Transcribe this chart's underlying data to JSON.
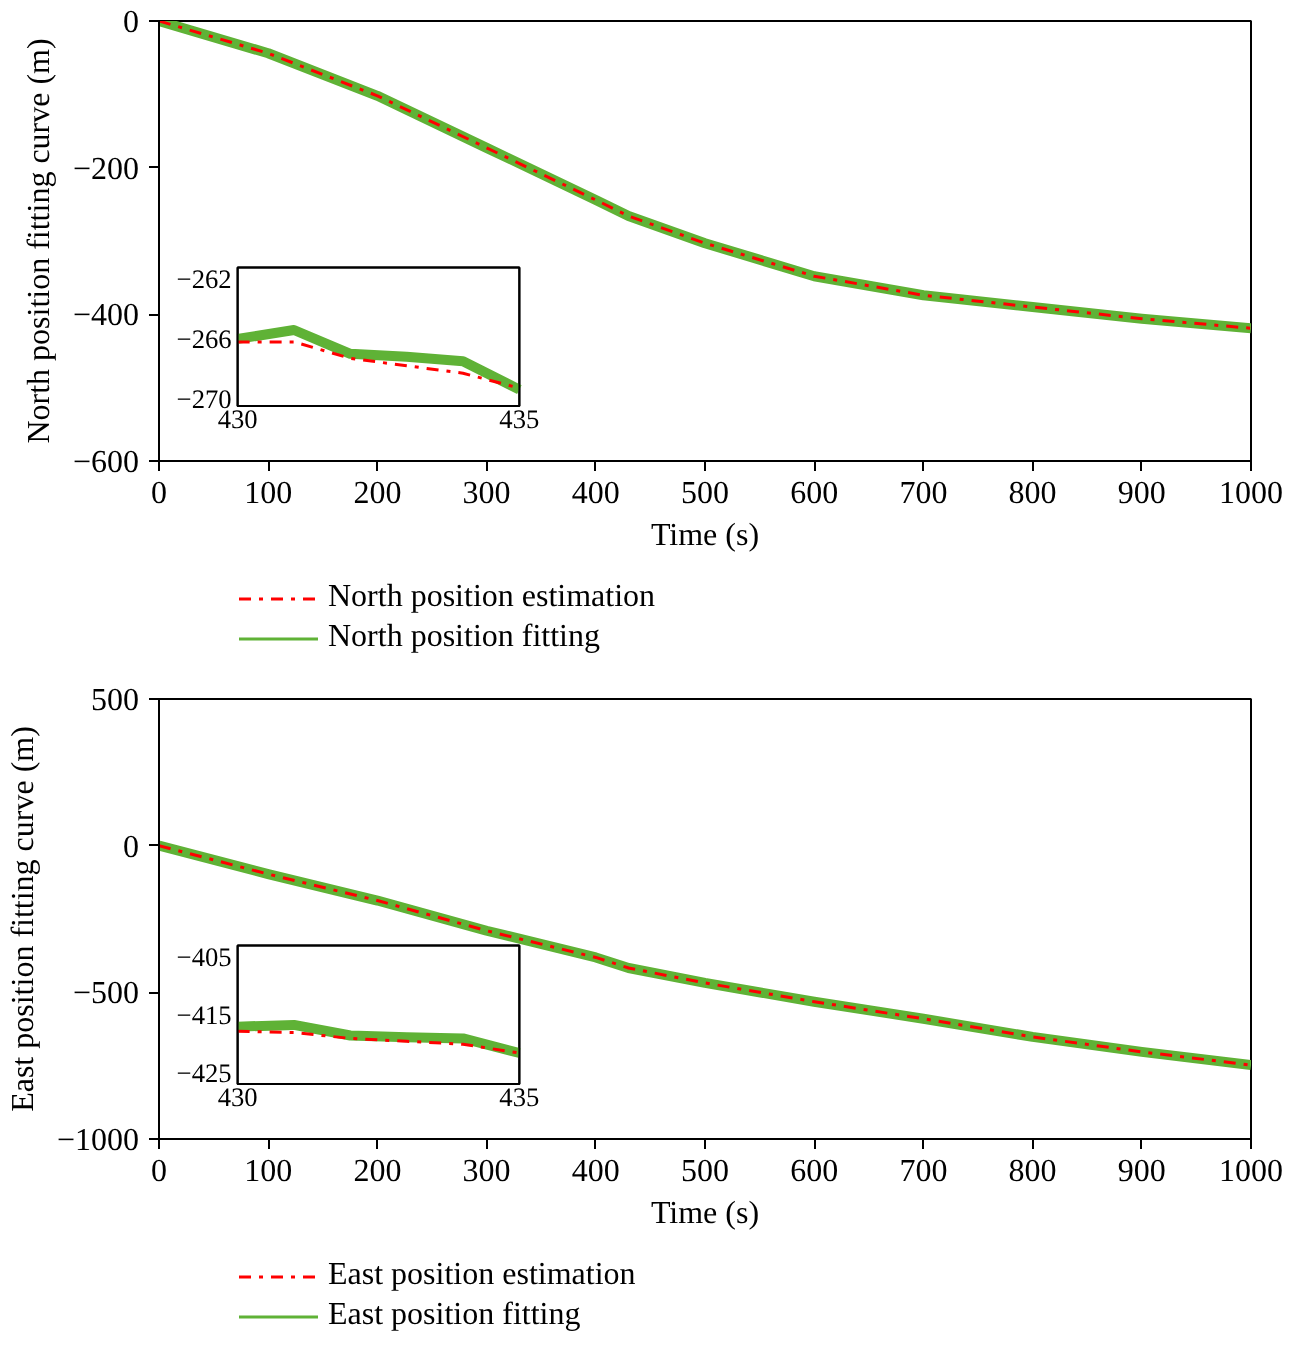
{
  "chart_data": [
    {
      "type": "line",
      "xlabel": "Time (s)",
      "ylabel": "North position fitting curve (m)",
      "xlim": [
        0,
        1000
      ],
      "ylim": [
        -600,
        0
      ],
      "xticks": [
        0,
        100,
        200,
        300,
        400,
        500,
        600,
        700,
        800,
        900,
        1000
      ],
      "yticks": [
        0,
        -200,
        -400,
        -600
      ],
      "grid": false,
      "legend": "bottom",
      "x": [
        0,
        100,
        200,
        300,
        400,
        430,
        500,
        600,
        700,
        800,
        900,
        1000
      ],
      "series": [
        {
          "name": "North position estimation",
          "color": "#ff0000",
          "line_style": "dashed",
          "values": [
            0,
            -44,
            -102,
            -173,
            -244,
            -266,
            -303,
            -348,
            -374,
            -390,
            -406,
            -419
          ]
        },
        {
          "name": "North position fitting",
          "color": "#5fb236",
          "line_style": "solid",
          "values": [
            0,
            -44,
            -102,
            -173,
            -244,
            -266,
            -303,
            -348,
            -374,
            -390,
            -406,
            -419
          ]
        }
      ]
    },
    {
      "type": "line",
      "xlim": [
        430,
        435
      ],
      "ylim": [
        -270.5,
        -261.2
      ],
      "xticks": [
        430,
        435
      ],
      "yticks": [
        -262,
        -266,
        -270
      ],
      "x": [
        430,
        431,
        432,
        433,
        434,
        435
      ],
      "series": [
        {
          "color": "#5fb236",
          "line_style": "solid",
          "values": [
            -266,
            -265.4,
            -267,
            -267.2,
            -267.5,
            -269.4
          ]
        },
        {
          "color": "#ff0000",
          "line_style": "dashed",
          "values": [
            -266.2,
            -266.2,
            -267.3,
            -267.8,
            -268.3,
            -269.3
          ]
        }
      ]
    },
    {
      "type": "line",
      "xlabel": "Time (s)",
      "ylabel": "East position fitting curve (m)",
      "xlim": [
        0,
        1000
      ],
      "ylim": [
        -1000,
        500
      ],
      "xticks": [
        0,
        100,
        200,
        300,
        400,
        500,
        600,
        700,
        800,
        900,
        1000
      ],
      "yticks": [
        500,
        0,
        -500,
        -1000
      ],
      "grid": false,
      "legend": "bottom",
      "x": [
        0,
        100,
        200,
        300,
        400,
        430,
        500,
        600,
        700,
        800,
        900,
        1000
      ],
      "series": [
        {
          "name": "East position estimation",
          "color": "#ff0000",
          "line_style": "dashed",
          "values": [
            0,
            -97,
            -187,
            -290,
            -381,
            -417,
            -468,
            -532,
            -590,
            -652,
            -703,
            -748
          ]
        },
        {
          "name": "East position fitting",
          "color": "#5fb236",
          "line_style": "solid",
          "values": [
            0,
            -97,
            -187,
            -290,
            -381,
            -417,
            -468,
            -532,
            -590,
            -652,
            -703,
            -748
          ]
        }
      ]
    },
    {
      "type": "line",
      "xlim": [
        430,
        435
      ],
      "ylim": [
        -426.8,
        -403.1
      ],
      "xticks": [
        430,
        435
      ],
      "yticks": [
        -405,
        -415,
        -425
      ],
      "x": [
        430,
        431,
        432,
        433,
        434,
        435
      ],
      "series": [
        {
          "color": "#5fb236",
          "line_style": "solid",
          "values": [
            -417,
            -416.7,
            -418.5,
            -418.8,
            -419,
            -421.5
          ]
        },
        {
          "color": "#ff0000",
          "line_style": "dashed",
          "values": [
            -417.8,
            -418,
            -419,
            -419.5,
            -420,
            -421.5
          ]
        }
      ]
    }
  ]
}
